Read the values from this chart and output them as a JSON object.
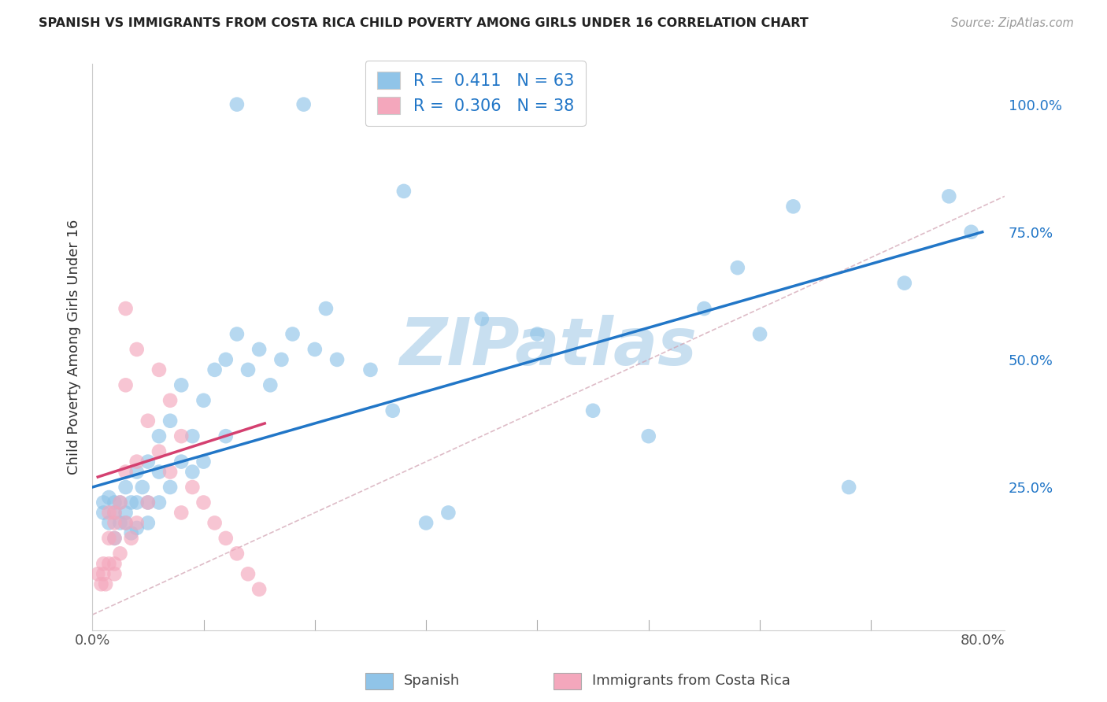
{
  "title": "SPANISH VS IMMIGRANTS FROM COSTA RICA CHILD POVERTY AMONG GIRLS UNDER 16 CORRELATION CHART",
  "source": "Source: ZipAtlas.com",
  "ylabel": "Child Poverty Among Girls Under 16",
  "xlim": [
    0.0,
    0.82
  ],
  "ylim": [
    -0.03,
    1.08
  ],
  "blue_color": "#90c4e8",
  "pink_color": "#f4a7bc",
  "blue_line_color": "#2176c7",
  "pink_line_color": "#d44070",
  "diag_color": "#d0a0b0",
  "watermark": "ZIPatlas",
  "watermark_color": "#c8dff0",
  "blue_scatter_x": [
    0.01,
    0.01,
    0.015,
    0.015,
    0.02,
    0.02,
    0.02,
    0.025,
    0.025,
    0.03,
    0.03,
    0.03,
    0.035,
    0.035,
    0.04,
    0.04,
    0.04,
    0.045,
    0.05,
    0.05,
    0.05,
    0.06,
    0.06,
    0.06,
    0.07,
    0.07,
    0.08,
    0.08,
    0.09,
    0.09,
    0.1,
    0.1,
    0.11,
    0.12,
    0.12,
    0.13,
    0.14,
    0.15,
    0.16,
    0.17,
    0.18,
    0.2,
    0.21,
    0.22,
    0.25,
    0.27,
    0.3,
    0.32,
    0.35,
    0.4,
    0.45,
    0.5,
    0.55,
    0.58,
    0.6,
    0.63,
    0.68,
    0.73,
    0.77,
    0.79,
    0.13,
    0.19,
    0.28
  ],
  "blue_scatter_y": [
    0.2,
    0.22,
    0.18,
    0.23,
    0.2,
    0.22,
    0.15,
    0.18,
    0.22,
    0.2,
    0.25,
    0.18,
    0.22,
    0.16,
    0.28,
    0.22,
    0.17,
    0.25,
    0.3,
    0.22,
    0.18,
    0.35,
    0.28,
    0.22,
    0.38,
    0.25,
    0.45,
    0.3,
    0.35,
    0.28,
    0.42,
    0.3,
    0.48,
    0.5,
    0.35,
    0.55,
    0.48,
    0.52,
    0.45,
    0.5,
    0.55,
    0.52,
    0.6,
    0.5,
    0.48,
    0.4,
    0.18,
    0.2,
    0.58,
    0.55,
    0.4,
    0.35,
    0.6,
    0.68,
    0.55,
    0.8,
    0.25,
    0.65,
    0.82,
    0.75,
    1.0,
    1.0,
    0.83
  ],
  "pink_scatter_x": [
    0.005,
    0.008,
    0.01,
    0.01,
    0.012,
    0.015,
    0.015,
    0.015,
    0.02,
    0.02,
    0.02,
    0.02,
    0.02,
    0.025,
    0.025,
    0.03,
    0.03,
    0.03,
    0.03,
    0.035,
    0.04,
    0.04,
    0.04,
    0.05,
    0.05,
    0.06,
    0.06,
    0.07,
    0.07,
    0.08,
    0.08,
    0.09,
    0.1,
    0.11,
    0.12,
    0.13,
    0.14,
    0.15
  ],
  "pink_scatter_y": [
    0.08,
    0.06,
    0.1,
    0.08,
    0.06,
    0.2,
    0.15,
    0.1,
    0.2,
    0.18,
    0.15,
    0.1,
    0.08,
    0.22,
    0.12,
    0.6,
    0.45,
    0.28,
    0.18,
    0.15,
    0.52,
    0.3,
    0.18,
    0.38,
    0.22,
    0.48,
    0.32,
    0.42,
    0.28,
    0.35,
    0.2,
    0.25,
    0.22,
    0.18,
    0.15,
    0.12,
    0.08,
    0.05
  ],
  "blue_line_x0": 0.0,
  "blue_line_y0": 0.25,
  "blue_line_x1": 0.8,
  "blue_line_y1": 0.75,
  "pink_line_x0": 0.005,
  "pink_line_y0": 0.27,
  "pink_line_x1": 0.155,
  "pink_line_y1": 0.375
}
